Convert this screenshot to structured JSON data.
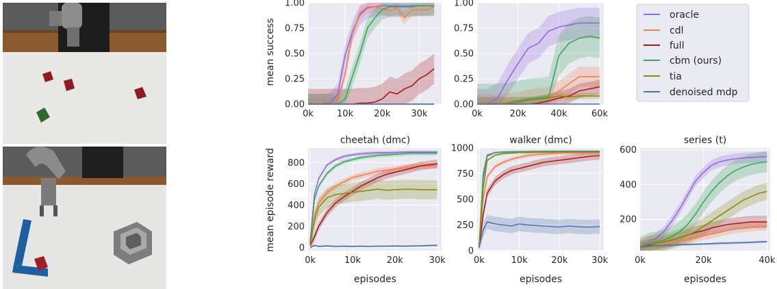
{
  "colors": {
    "oracle": "#9467e0",
    "cdl": "#f28050",
    "full": "#a61b1b",
    "cbm": "#3aa55c",
    "tia": "#8a8a14",
    "dmp": "#4c72b0",
    "panel_bg": "#eaeaf2",
    "grid": "#ffffff"
  },
  "legend": {
    "entries": [
      {
        "key": "oracle",
        "label": "oracle"
      },
      {
        "key": "cdl",
        "label": "cdl"
      },
      {
        "key": "full",
        "label": "full"
      },
      {
        "key": "cbm",
        "label": "cbm (ours)"
      },
      {
        "key": "tia",
        "label": "tia"
      },
      {
        "key": "dmp",
        "label": "denoised mdp"
      }
    ]
  },
  "images": [
    {
      "name": "robot-cube-scene"
    },
    {
      "name": "robot-block-scene"
    }
  ],
  "chart_data": [
    {
      "type": "line",
      "title": "",
      "xlabel": "",
      "ylabel": "mean success",
      "xlim": [
        0,
        36000
      ],
      "ylim": [
        0,
        1
      ],
      "xticks": [
        0,
        10000,
        20000,
        30000
      ],
      "xtick_labels": [
        "0k",
        "10k",
        "20k",
        "30k"
      ],
      "yticks": [
        0,
        0.25,
        0.5,
        0.75,
        1.0
      ],
      "ytick_labels": [
        "0.00",
        "0.25",
        "0.50",
        "0.75",
        "1.00"
      ],
      "grid": true,
      "x": [
        0,
        3000,
        6000,
        8000,
        10000,
        12000,
        14000,
        16000,
        18000,
        20000,
        22000,
        24000,
        26000,
        28000,
        30000,
        32000,
        34000
      ],
      "series": [
        {
          "key": "oracle",
          "values": [
            0,
            0,
            0.01,
            0.1,
            0.48,
            0.72,
            0.88,
            0.95,
            0.96,
            0.97,
            0.97,
            0.97,
            0.97,
            0.97,
            0.97,
            0.97,
            0.97
          ],
          "band": 0.1
        },
        {
          "key": "cdl",
          "values": [
            0,
            0,
            0,
            0.02,
            0.3,
            0.7,
            0.9,
            0.96,
            0.96,
            0.94,
            0.92,
            0.95,
            0.85,
            0.93,
            0.93,
            0.93,
            0.96
          ],
          "band": 0.06
        },
        {
          "key": "full",
          "values": [
            0,
            0,
            0,
            0,
            0,
            0,
            0.01,
            0.01,
            0.02,
            0.05,
            0.12,
            0.1,
            0.15,
            0.18,
            0.25,
            0.29,
            0.35
          ],
          "band": 0.15
        },
        {
          "key": "cbm",
          "values": [
            0,
            0,
            0,
            0,
            0.05,
            0.28,
            0.5,
            0.75,
            0.85,
            0.93,
            0.96,
            0.96,
            0.96,
            0.96,
            0.97,
            0.97,
            0.97
          ],
          "band": 0.1
        },
        {
          "key": "tia",
          "values": [
            0,
            0,
            0,
            0,
            0,
            0,
            0,
            0,
            0,
            0,
            0,
            0,
            0,
            0,
            0,
            0,
            0
          ],
          "band": 0.005
        },
        {
          "key": "dmp",
          "values": [
            0,
            0,
            0,
            0,
            0,
            0,
            0,
            0,
            0,
            0,
            0,
            0,
            0,
            0,
            0,
            0,
            0
          ],
          "band": 0.005
        }
      ]
    },
    {
      "type": "line",
      "title": "",
      "xlabel": "",
      "ylabel": "",
      "xlim": [
        0,
        62000
      ],
      "ylim": [
        0,
        1
      ],
      "xticks": [
        0,
        20000,
        40000,
        60000
      ],
      "xtick_labels": [
        "0k",
        "20k",
        "40k",
        "60k"
      ],
      "yticks": [
        0,
        0.25,
        0.5,
        0.75,
        1.0
      ],
      "ytick_labels": [
        "0.00",
        "0.25",
        "0.50",
        "0.75",
        "1.00"
      ],
      "grid": true,
      "x": [
        0,
        5000,
        10000,
        15000,
        20000,
        25000,
        30000,
        35000,
        40000,
        45000,
        50000,
        55000,
        60000
      ],
      "series": [
        {
          "key": "oracle",
          "values": [
            0,
            0,
            0.06,
            0.24,
            0.4,
            0.55,
            0.6,
            0.72,
            0.76,
            0.78,
            0.8,
            0.8,
            0.8
          ],
          "band": 0.15
        },
        {
          "key": "cdl",
          "values": [
            0,
            0,
            0,
            0.01,
            0.02,
            0.04,
            0.06,
            0.07,
            0.13,
            0.2,
            0.27,
            0.27,
            0.27
          ],
          "band": 0.1
        },
        {
          "key": "full",
          "values": [
            0,
            0,
            0,
            0,
            0,
            0,
            0.01,
            0.03,
            0.06,
            0.08,
            0.13,
            0.15,
            0.17
          ],
          "band": 0.07
        },
        {
          "key": "cbm",
          "values": [
            0,
            0,
            0,
            0.01,
            0.03,
            0.05,
            0.06,
            0.07,
            0.48,
            0.6,
            0.65,
            0.67,
            0.65
          ],
          "band": 0.2
        },
        {
          "key": "tia",
          "values": [
            0,
            0,
            0,
            0.01,
            0.02,
            0.04,
            0.05,
            0.06,
            0.08,
            0.07,
            0.08,
            0.08,
            0.08
          ],
          "band": 0.03
        },
        {
          "key": "dmp",
          "values": [
            0,
            0,
            0,
            0,
            0,
            0,
            0,
            0,
            0,
            0,
            0,
            0,
            0
          ],
          "band": 0.005
        }
      ]
    },
    {
      "type": "line",
      "title": "cheetah (dmc)",
      "xlabel": "episodes",
      "ylabel": "mean episode reward",
      "xlim": [
        -500,
        31000
      ],
      "ylim": [
        -30,
        940
      ],
      "xticks": [
        0,
        10000,
        20000,
        30000
      ],
      "xtick_labels": [
        "0k",
        "10k",
        "20k",
        "30k"
      ],
      "yticks": [
        0,
        200,
        400,
        600,
        800
      ],
      "ytick_labels": [
        "0",
        "200",
        "400",
        "600",
        "800"
      ],
      "grid": true,
      "x": [
        0,
        1000,
        2000,
        4000,
        6000,
        8000,
        10000,
        12000,
        14000,
        16000,
        18000,
        20000,
        22000,
        24000,
        26000,
        28000,
        30000
      ],
      "series": [
        {
          "key": "oracle",
          "values": [
            50,
            500,
            650,
            780,
            830,
            860,
            875,
            885,
            890,
            895,
            895,
            898,
            900,
            900,
            900,
            900,
            900
          ],
          "band": 15
        },
        {
          "key": "cdl",
          "values": [
            40,
            300,
            420,
            520,
            580,
            620,
            660,
            680,
            700,
            720,
            730,
            740,
            750,
            760,
            770,
            770,
            775
          ],
          "band": 30
        },
        {
          "key": "full",
          "values": [
            20,
            100,
            200,
            330,
            420,
            480,
            530,
            580,
            620,
            660,
            690,
            710,
            730,
            750,
            770,
            780,
            790
          ],
          "band": 40
        },
        {
          "key": "cbm",
          "values": [
            50,
            450,
            580,
            700,
            770,
            810,
            830,
            850,
            860,
            870,
            875,
            880,
            885,
            890,
            890,
            890,
            890
          ],
          "band": 20
        },
        {
          "key": "tia",
          "values": [
            30,
            250,
            380,
            470,
            500,
            510,
            520,
            530,
            540,
            550,
            540,
            545,
            550,
            550,
            545,
            545,
            545
          ],
          "band": 90
        },
        {
          "key": "dmp",
          "values": [
            0,
            20,
            10,
            15,
            10,
            12,
            10,
            12,
            10,
            12,
            12,
            14,
            12,
            14,
            15,
            18,
            20
          ],
          "band": 8
        }
      ]
    },
    {
      "type": "line",
      "title": "walker (dmc)",
      "xlabel": "episodes",
      "ylabel": "",
      "xlim": [
        -500,
        31000
      ],
      "ylim": [
        0,
        1000
      ],
      "xticks": [
        0,
        10000,
        20000,
        30000
      ],
      "xtick_labels": [
        "0k",
        "10k",
        "20k",
        "30k"
      ],
      "yticks": [
        0,
        250,
        500,
        750,
        1000
      ],
      "ytick_labels": [
        "0",
        "250",
        "500",
        "750",
        "1000"
      ],
      "grid": true,
      "x": [
        0,
        1000,
        2000,
        4000,
        6000,
        8000,
        10000,
        12000,
        14000,
        16000,
        18000,
        20000,
        22000,
        24000,
        26000,
        28000,
        30000
      ],
      "series": [
        {
          "key": "oracle",
          "values": [
            50,
            700,
            920,
            955,
            960,
            962,
            965,
            965,
            966,
            967,
            967,
            968,
            968,
            968,
            968,
            968,
            968
          ],
          "band": 8
        },
        {
          "key": "cdl",
          "values": [
            50,
            500,
            720,
            820,
            860,
            890,
            910,
            925,
            935,
            940,
            945,
            950,
            950,
            950,
            950,
            952,
            955
          ],
          "band": 20
        },
        {
          "key": "full",
          "values": [
            30,
            350,
            560,
            680,
            740,
            780,
            800,
            820,
            840,
            860,
            870,
            880,
            890,
            900,
            910,
            920,
            925
          ],
          "band": 40
        },
        {
          "key": "cbm",
          "values": [
            50,
            750,
            930,
            955,
            960,
            962,
            963,
            964,
            965,
            965,
            966,
            966,
            966,
            966,
            966,
            966,
            966
          ],
          "band": 8
        },
        {
          "key": "tia",
          "values": [
            50,
            600,
            880,
            930,
            945,
            950,
            955,
            955,
            958,
            958,
            958,
            960,
            960,
            960,
            960,
            960,
            960
          ],
          "band": 12
        },
        {
          "key": "dmp",
          "values": [
            30,
            200,
            280,
            260,
            250,
            240,
            260,
            250,
            245,
            240,
            235,
            230,
            240,
            235,
            230,
            230,
            235
          ],
          "band": 70
        }
      ]
    },
    {
      "type": "line",
      "title": "series (t)",
      "xlabel": "episodes",
      "ylabel": "",
      "xlim": [
        0,
        41000
      ],
      "ylim": [
        20,
        610
      ],
      "xticks": [
        0,
        20000,
        40000
      ],
      "xtick_labels": [
        "0k",
        "20k",
        "40k"
      ],
      "yticks": [
        200,
        400,
        600
      ],
      "ytick_labels": [
        "200",
        "400",
        "600"
      ],
      "grid": true,
      "x": [
        0,
        2500,
        5000,
        7500,
        10000,
        12500,
        15000,
        17500,
        20000,
        22500,
        25000,
        27500,
        30000,
        32500,
        35000,
        37500,
        40000
      ],
      "series": [
        {
          "key": "oracle",
          "values": [
            40,
            70,
            90,
            130,
            190,
            260,
            340,
            420,
            470,
            510,
            530,
            540,
            548,
            552,
            555,
            558,
            560
          ],
          "band": 30
        },
        {
          "key": "cdl",
          "values": [
            40,
            50,
            55,
            60,
            65,
            75,
            85,
            95,
            105,
            115,
            125,
            135,
            145,
            150,
            155,
            160,
            160
          ],
          "band": 25
        },
        {
          "key": "full",
          "values": [
            40,
            50,
            60,
            70,
            80,
            95,
            110,
            125,
            135,
            150,
            160,
            170,
            175,
            180,
            185,
            185,
            185
          ],
          "band": 35
        },
        {
          "key": "cbm",
          "values": [
            40,
            60,
            70,
            80,
            100,
            130,
            170,
            230,
            300,
            360,
            410,
            450,
            480,
            500,
            515,
            525,
            530
          ],
          "band": 60
        },
        {
          "key": "tia",
          "values": [
            40,
            55,
            60,
            70,
            80,
            95,
            110,
            130,
            160,
            190,
            220,
            250,
            280,
            310,
            330,
            350,
            360
          ],
          "band": 50
        },
        {
          "key": "dmp",
          "values": [
            40,
            45,
            48,
            50,
            52,
            54,
            55,
            57,
            58,
            60,
            62,
            63,
            65,
            66,
            68,
            70,
            72
          ],
          "band": 6
        }
      ]
    }
  ]
}
